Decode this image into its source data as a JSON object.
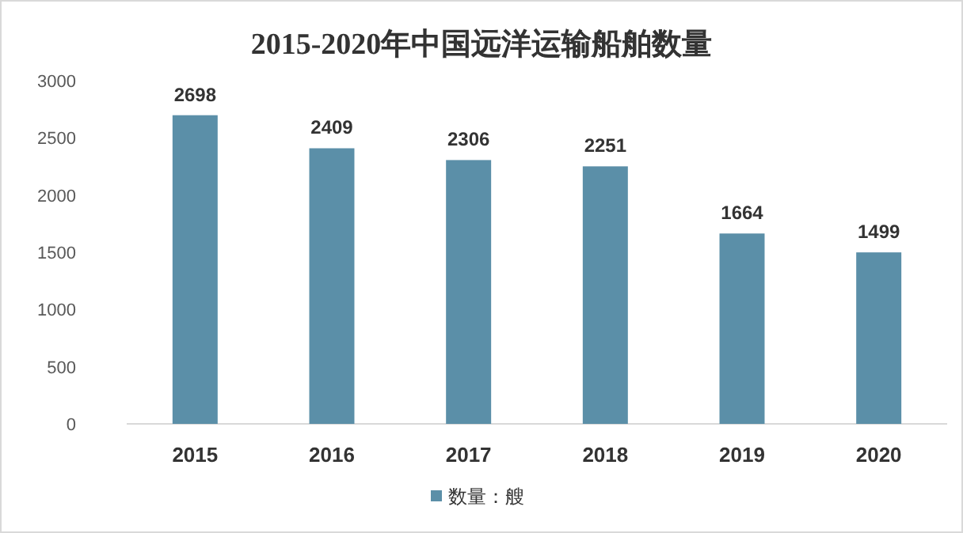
{
  "chart_data": {
    "type": "bar",
    "title": "2015-2020年中国远洋运输船舶数量",
    "categories": [
      "2015",
      "2016",
      "2017",
      "2018",
      "2019",
      "2020"
    ],
    "series": [
      {
        "name": "数量：艘",
        "color": "#5b8fa8",
        "values": [
          2698,
          2409,
          2306,
          2251,
          1664,
          1499
        ]
      }
    ],
    "ylim": [
      0,
      3000
    ],
    "yticks": [
      0,
      500,
      1000,
      1500,
      2000,
      2500,
      3000
    ],
    "data_labels": true,
    "legend": "bottom"
  }
}
